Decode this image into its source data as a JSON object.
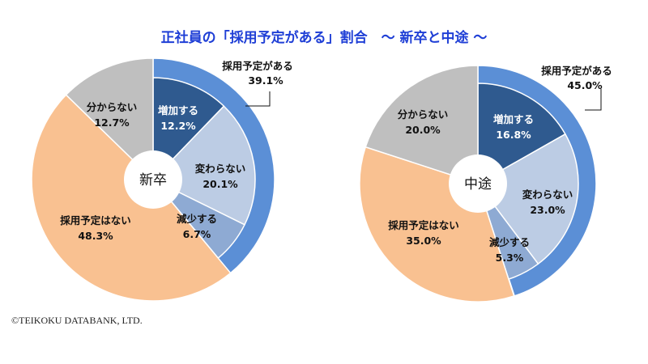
{
  "chart_data": [
    {
      "type": "pie",
      "title": "正社員の「採用予定がある」割合　～ 新卒と中途 ～",
      "center_label": "新卒",
      "slices": [
        {
          "label": "増加する",
          "value": 12.2,
          "display": "12.2%",
          "color": "#2f5a8f"
        },
        {
          "label": "変わらない",
          "value": 20.1,
          "display": "20.1%",
          "color": "#bccce4"
        },
        {
          "label": "減少する",
          "value": 6.7,
          "display": "6.7%",
          "color": "#8eaad3"
        },
        {
          "label": "採用予定はない",
          "value": 48.3,
          "display": "48.3%",
          "color": "#f9c191"
        },
        {
          "label": "分からない",
          "value": 12.7,
          "display": "12.7%",
          "color": "#bfbfbf"
        }
      ],
      "outer_ring": {
        "label": "採用予定がある",
        "value": 39.1,
        "display": "39.1%",
        "color": "#5b8fd6"
      }
    },
    {
      "type": "pie",
      "center_label": "中途",
      "slices": [
        {
          "label": "増加する",
          "value": 16.8,
          "display": "16.8%",
          "color": "#2f5a8f"
        },
        {
          "label": "変わらない",
          "value": 23.0,
          "display": "23.0%",
          "color": "#bccce4"
        },
        {
          "label": "減少する",
          "value": 5.3,
          "display": "5.3%",
          "color": "#8eaad3"
        },
        {
          "label": "採用予定はない",
          "value": 35.0,
          "display": "35.0%",
          "color": "#f9c191"
        },
        {
          "label": "分からない",
          "value": 20.0,
          "display": "20.0%",
          "color": "#bfbfbf"
        }
      ],
      "outer_ring": {
        "label": "採用予定がある",
        "value": 45.0,
        "display": "45.0%",
        "color": "#5b8fd6"
      }
    }
  ],
  "copyright": "©TEIKOKU DATABANK, LTD."
}
